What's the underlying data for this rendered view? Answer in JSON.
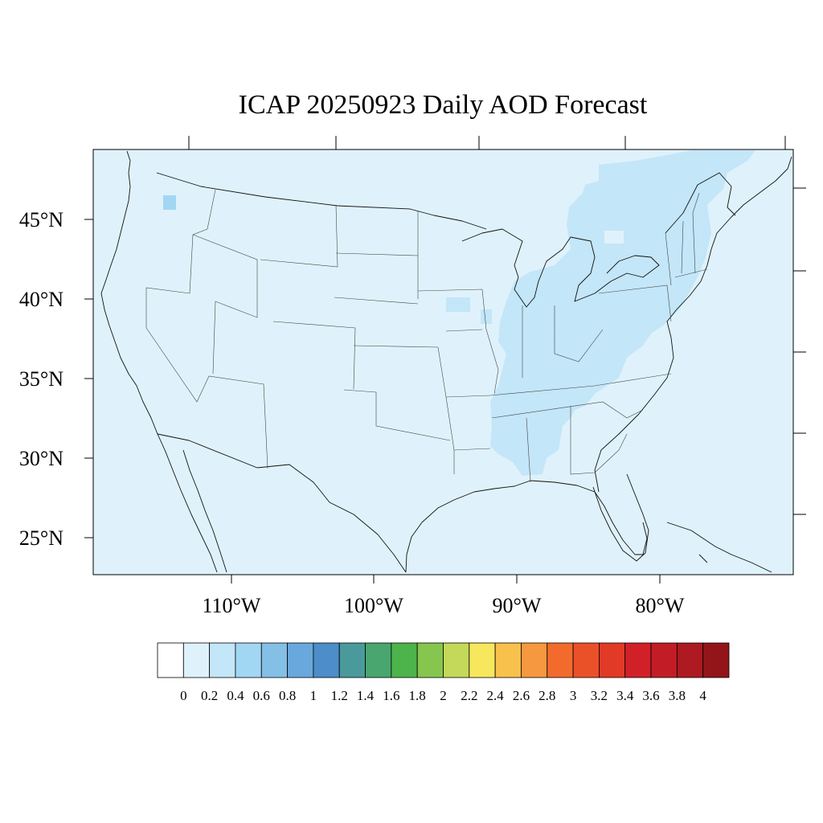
{
  "title": "ICAP 20250923 Daily AOD Forecast",
  "map": {
    "background_color": "#dff2fb",
    "elevated_color": "#c3e6f8",
    "lon_ticks": [
      "110°W",
      "100°W",
      "90°W",
      "80°W"
    ],
    "lat_ticks": [
      "45°N",
      "40°N",
      "35°N",
      "30°N",
      "25°N"
    ]
  },
  "colorbar": {
    "labels": [
      "0",
      "0.2",
      "0.4",
      "0.6",
      "0.8",
      "1",
      "1.2",
      "1.4",
      "1.6",
      "1.8",
      "2",
      "2.2",
      "2.4",
      "2.6",
      "2.8",
      "3",
      "3.2",
      "3.4",
      "3.6",
      "3.8",
      "4"
    ],
    "colors": [
      "#ffffff",
      "#dff2fb",
      "#c3e6f8",
      "#a2d7f3",
      "#84bfe6",
      "#69a8dc",
      "#4d8dc9",
      "#4a9a9c",
      "#49a66f",
      "#4cb44a",
      "#86c64e",
      "#c4d85a",
      "#f7e75d",
      "#f8c14b",
      "#f6983f",
      "#f26b2d",
      "#eb5129",
      "#e13a27",
      "#d22029",
      "#c21d27",
      "#ad1a22",
      "#931519"
    ]
  }
}
